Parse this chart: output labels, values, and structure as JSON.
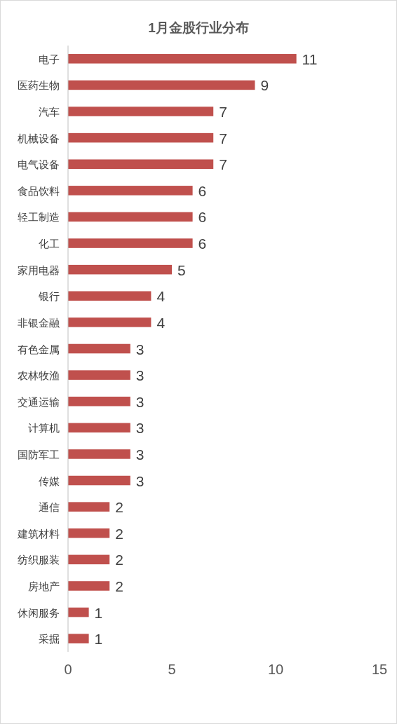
{
  "chart_data": {
    "type": "bar",
    "orientation": "horizontal",
    "title": "1月金股行业分布",
    "categories": [
      "电子",
      "医药生物",
      "汽车",
      "机械设备",
      "电气设备",
      "食品饮料",
      "轻工制造",
      "化工",
      "家用电器",
      "银行",
      "非银金融",
      "有色金属",
      "农林牧渔",
      "交通运输",
      "计算机",
      "国防军工",
      "传媒",
      "通信",
      "建筑材料",
      "纺织服装",
      "房地产",
      "休闲服务",
      "采掘"
    ],
    "values": [
      11,
      9,
      7,
      7,
      7,
      6,
      6,
      6,
      5,
      4,
      4,
      3,
      3,
      3,
      3,
      3,
      3,
      2,
      2,
      2,
      2,
      1,
      1
    ],
    "color": "#c0504d",
    "xlim": [
      0,
      15
    ],
    "xticks": [
      0,
      5,
      10,
      15
    ],
    "data_labels": true,
    "grid": false
  }
}
